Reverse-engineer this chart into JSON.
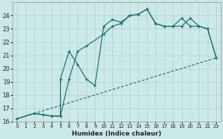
{
  "xlabel": "Humidex (Indice chaleur)",
  "bg_color": "#cce8e8",
  "grid_color": "#aacece",
  "line_color": "#1a6e6e",
  "xlim": [
    -0.5,
    23.5
  ],
  "ylim": [
    16,
    25
  ],
  "line1_x": [
    0,
    2,
    3,
    4,
    5,
    5,
    6,
    7,
    8,
    9,
    10,
    11,
    12,
    13,
    14,
    15,
    16,
    17,
    18,
    19,
    20,
    21,
    22,
    23
  ],
  "line1_y": [
    16.2,
    16.6,
    16.5,
    16.4,
    16.4,
    19.2,
    21.3,
    20.3,
    19.2,
    18.7,
    23.2,
    23.7,
    23.5,
    24.0,
    24.1,
    24.5,
    23.4,
    23.2,
    23.2,
    23.8,
    23.2,
    23.2,
    23.0,
    20.8
  ],
  "line2_x": [
    0,
    2,
    3,
    4,
    5,
    6,
    7,
    8,
    10,
    11,
    12,
    13,
    14,
    15,
    16,
    17,
    18,
    19,
    20,
    21,
    22,
    23
  ],
  "line2_y": [
    16.2,
    16.6,
    16.5,
    16.4,
    16.4,
    19.2,
    21.3,
    21.7,
    22.6,
    23.2,
    23.4,
    24.0,
    24.1,
    24.5,
    23.4,
    23.2,
    23.2,
    23.2,
    23.8,
    23.2,
    23.0,
    20.8
  ],
  "line3_x": [
    0,
    23
  ],
  "line3_y": [
    16.2,
    20.8
  ],
  "xticks": [
    0,
    1,
    2,
    3,
    4,
    5,
    6,
    7,
    8,
    9,
    10,
    11,
    12,
    13,
    14,
    15,
    16,
    17,
    18,
    19,
    20,
    21,
    22,
    23
  ],
  "yticks": [
    16,
    17,
    18,
    19,
    20,
    21,
    22,
    23,
    24
  ]
}
